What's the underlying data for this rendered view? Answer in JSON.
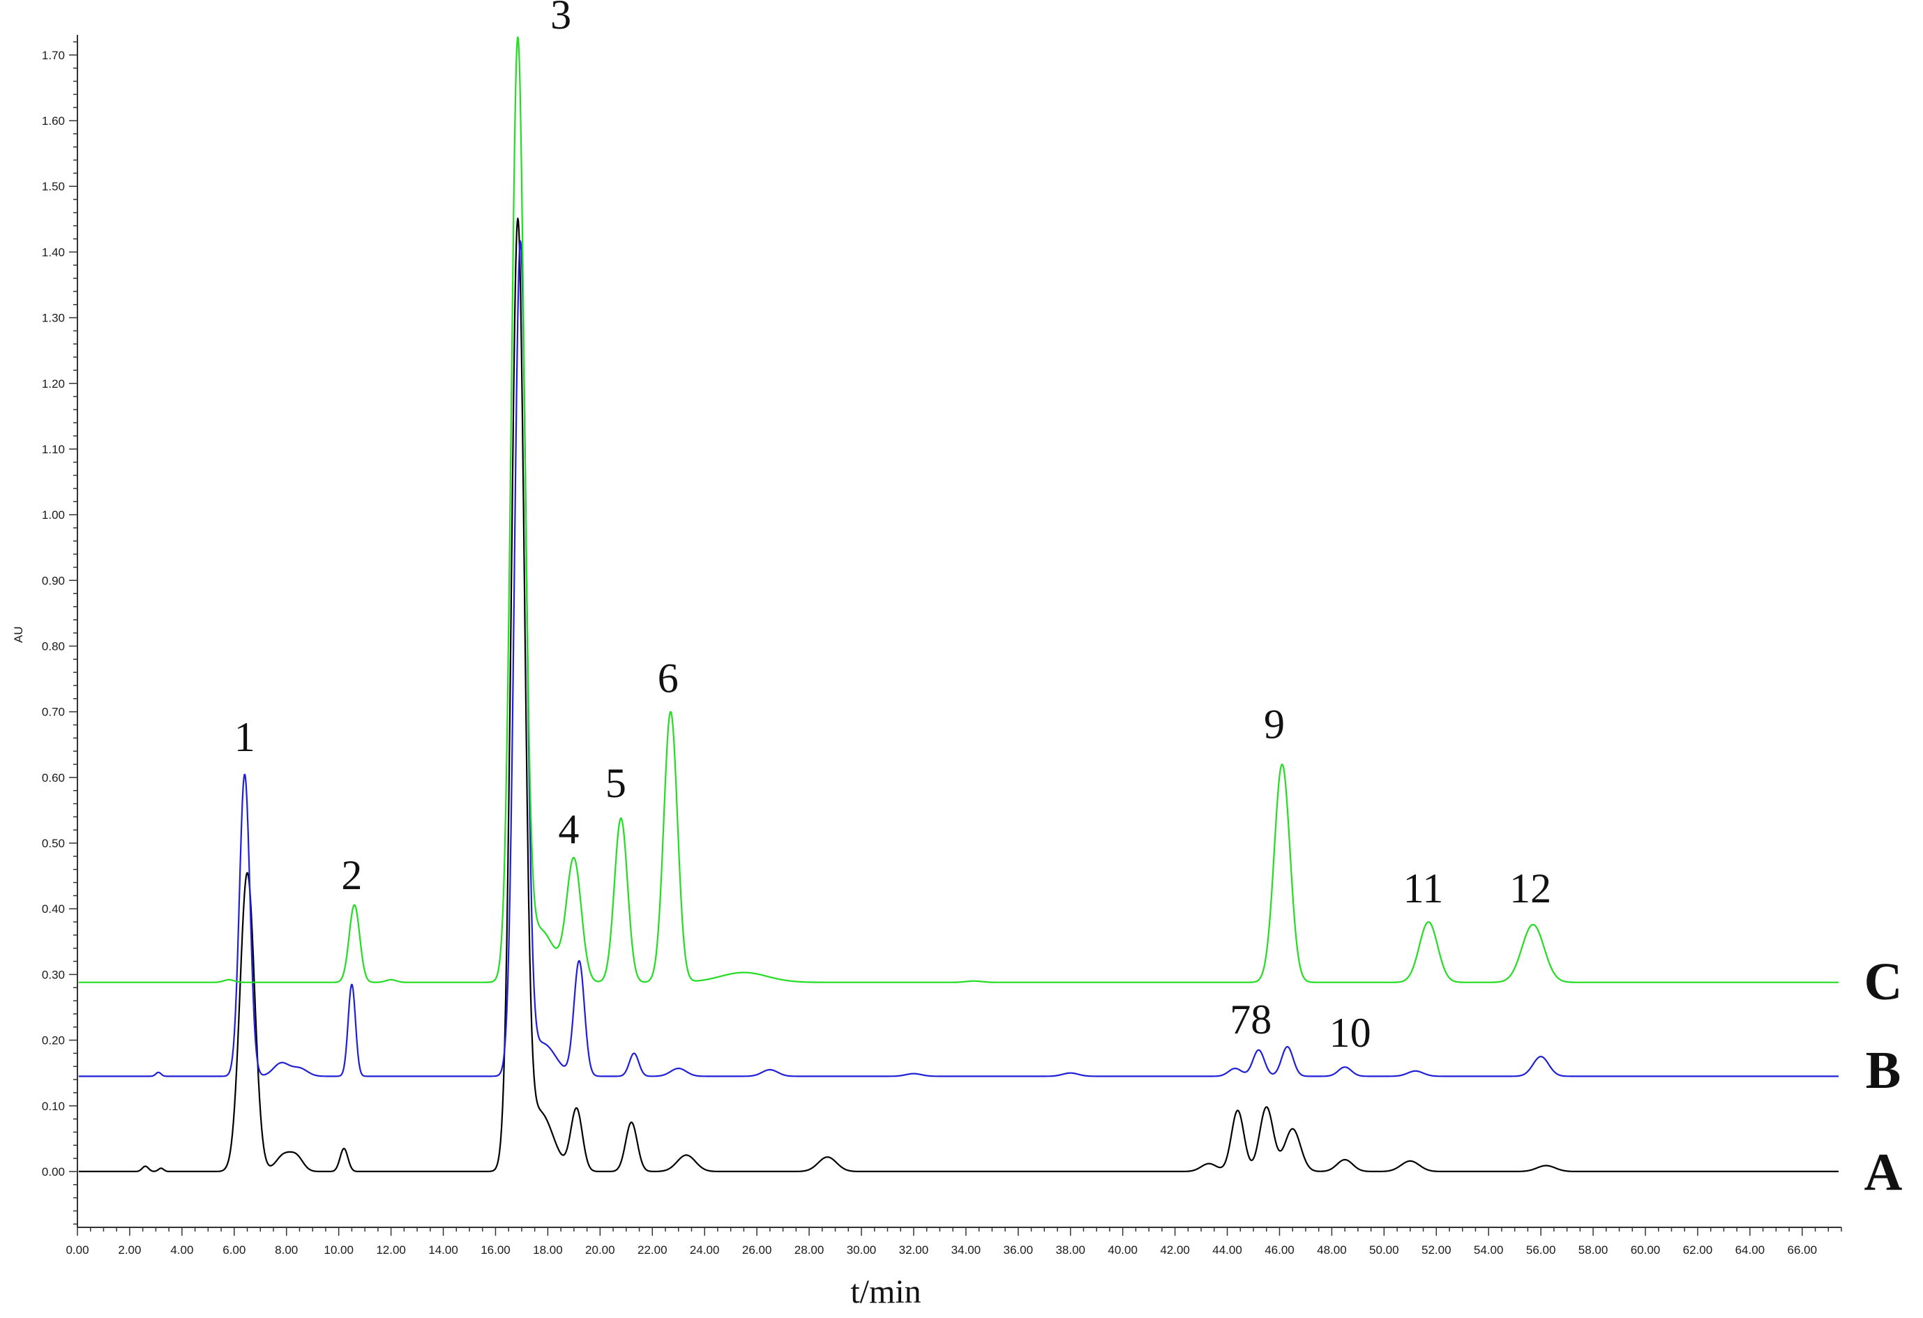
{
  "chart_data": {
    "type": "line",
    "ylabel": "AU",
    "xlabel": "t/min",
    "xlim": [
      0,
      67.5
    ],
    "ylim": [
      -0.085,
      1.72
    ],
    "x_ticks": [
      "0.00",
      "2.00",
      "4.00",
      "6.00",
      "8.00",
      "10.00",
      "12.00",
      "14.00",
      "16.00",
      "18.00",
      "20.00",
      "22.00",
      "24.00",
      "26.00",
      "28.00",
      "30.00",
      "32.00",
      "34.00",
      "36.00",
      "38.00",
      "40.00",
      "42.00",
      "44.00",
      "46.00",
      "48.00",
      "50.00",
      "52.00",
      "54.00",
      "56.00",
      "58.00",
      "60.00",
      "62.00",
      "64.00",
      "66.00"
    ],
    "y_ticks": [
      "0.00",
      "0.10",
      "0.20",
      "0.30",
      "0.40",
      "0.50",
      "0.60",
      "0.70",
      "0.80",
      "0.90",
      "1.00",
      "1.10",
      "1.20",
      "1.30",
      "1.40",
      "1.50",
      "1.60",
      "1.70"
    ],
    "grid": false,
    "series": [
      {
        "name": "A",
        "color": "#000000",
        "baseline": 0.0,
        "peaks": [
          [
            2.6,
            0.008,
            0.12
          ],
          [
            3.2,
            0.005,
            0.1
          ],
          [
            6.5,
            0.455,
            0.28
          ],
          [
            7.9,
            0.025,
            0.3
          ],
          [
            8.4,
            0.02,
            0.25
          ],
          [
            10.2,
            0.035,
            0.15
          ],
          [
            16.85,
            1.43,
            0.25
          ],
          [
            17.7,
            0.09,
            0.5
          ],
          [
            19.1,
            0.095,
            0.22
          ],
          [
            21.2,
            0.075,
            0.22
          ],
          [
            23.3,
            0.025,
            0.35
          ],
          [
            28.7,
            0.022,
            0.35
          ],
          [
            43.3,
            0.012,
            0.3
          ],
          [
            44.4,
            0.093,
            0.24
          ],
          [
            45.5,
            0.098,
            0.26
          ],
          [
            46.5,
            0.065,
            0.3
          ],
          [
            48.5,
            0.018,
            0.3
          ],
          [
            51.0,
            0.016,
            0.35
          ],
          [
            56.2,
            0.009,
            0.35
          ]
        ]
      },
      {
        "name": "B",
        "color": "#1f1fd6",
        "baseline": 0.145,
        "peaks": [
          [
            3.1,
            0.006,
            0.1
          ],
          [
            6.4,
            0.46,
            0.2
          ],
          [
            7.8,
            0.02,
            0.3
          ],
          [
            8.5,
            0.012,
            0.3
          ],
          [
            10.5,
            0.14,
            0.14
          ],
          [
            16.95,
            1.26,
            0.23
          ],
          [
            17.8,
            0.05,
            0.5
          ],
          [
            19.2,
            0.175,
            0.2
          ],
          [
            21.3,
            0.035,
            0.18
          ],
          [
            23.0,
            0.012,
            0.3
          ],
          [
            26.5,
            0.01,
            0.3
          ],
          [
            32.0,
            0.004,
            0.3
          ],
          [
            38.0,
            0.005,
            0.3
          ],
          [
            44.3,
            0.012,
            0.25
          ],
          [
            45.2,
            0.04,
            0.22
          ],
          [
            46.3,
            0.045,
            0.22
          ],
          [
            48.5,
            0.014,
            0.25
          ],
          [
            51.2,
            0.008,
            0.3
          ],
          [
            56.0,
            0.03,
            0.3
          ]
        ]
      },
      {
        "name": "C",
        "color": "#22dd22",
        "baseline": 0.288,
        "peaks": [
          [
            5.8,
            0.004,
            0.2
          ],
          [
            10.6,
            0.118,
            0.2
          ],
          [
            12.0,
            0.004,
            0.2
          ],
          [
            16.85,
            1.415,
            0.25
          ],
          [
            17.7,
            0.08,
            0.55
          ],
          [
            19.0,
            0.185,
            0.28
          ],
          [
            20.8,
            0.25,
            0.25
          ],
          [
            22.7,
            0.412,
            0.26
          ],
          [
            25.5,
            0.015,
            0.9
          ],
          [
            34.3,
            0.002,
            0.3
          ],
          [
            46.1,
            0.332,
            0.3
          ],
          [
            51.7,
            0.092,
            0.35
          ],
          [
            55.7,
            0.088,
            0.42
          ]
        ]
      }
    ],
    "peak_labels": [
      {
        "text": "1",
        "x": 6.4,
        "y": 0.64
      },
      {
        "text": "2",
        "x": 10.5,
        "y": 0.43
      },
      {
        "text": "3",
        "x": 18.5,
        "y": 1.74
      },
      {
        "text": "4",
        "x": 18.8,
        "y": 0.5
      },
      {
        "text": "5",
        "x": 20.6,
        "y": 0.57
      },
      {
        "text": "6",
        "x": 22.6,
        "y": 0.73
      },
      {
        "text": "78",
        "x": 44.9,
        "y": 0.21
      },
      {
        "text": "9",
        "x": 45.8,
        "y": 0.66
      },
      {
        "text": "10",
        "x": 48.7,
        "y": 0.19
      },
      {
        "text": "11",
        "x": 51.5,
        "y": 0.41
      },
      {
        "text": "12",
        "x": 55.6,
        "y": 0.41
      }
    ],
    "series_labels": [
      {
        "text": "C",
        "y": 0.29
      },
      {
        "text": "B",
        "y": 0.155
      },
      {
        "text": "A",
        "y": 0.0
      }
    ]
  }
}
